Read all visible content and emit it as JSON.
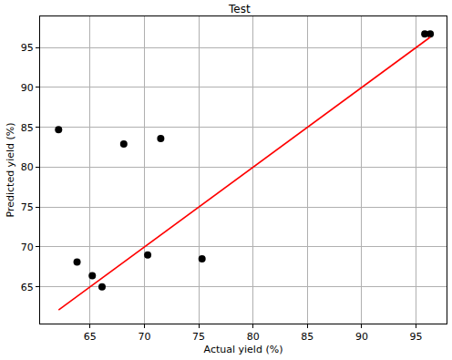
{
  "chart_data": {
    "type": "scatter",
    "title": "Test",
    "x_label": "Actual yield (%)",
    "y_label": "Predicted yield (%)",
    "series": [
      {
        "type": "scatter",
        "color": "#000000",
        "marker": "circle",
        "x": [
          62.1,
          63.8,
          65.2,
          66.1,
          68.1,
          70.3,
          71.5,
          75.3,
          95.8,
          96.3
        ],
        "values": [
          84.7,
          68.1,
          66.4,
          65.0,
          82.9,
          69.0,
          83.6,
          68.5,
          96.7,
          96.7
        ]
      },
      {
        "type": "line",
        "color": "#ff0000",
        "line_style": "solid",
        "x": [
          62.1,
          96.3
        ],
        "values": [
          62.1,
          96.3
        ]
      }
    ],
    "xlim": [
      60.4,
      97.8
    ],
    "ylim": [
      60.4,
      98.9
    ],
    "xticks": [
      65,
      70,
      75,
      80,
      85,
      90,
      95
    ],
    "yticks": [
      65,
      70,
      75,
      80,
      85,
      90,
      95
    ],
    "grid": true
  }
}
